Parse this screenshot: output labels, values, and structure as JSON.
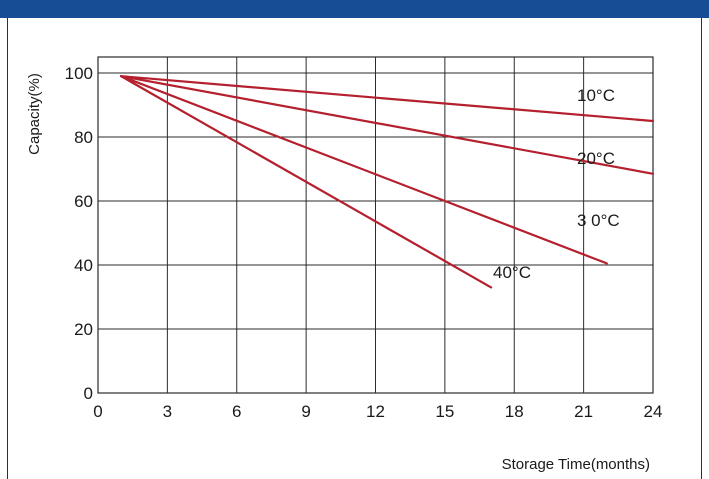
{
  "chart_data": {
    "type": "line",
    "xlabel": "Storage Time(months)",
    "ylabel": "Capacity(%)",
    "xlim": [
      0,
      24
    ],
    "ylim": [
      0,
      105
    ],
    "x_ticks": [
      0,
      3,
      6,
      9,
      12,
      15,
      18,
      21,
      24
    ],
    "y_ticks": [
      0,
      20,
      40,
      60,
      80,
      100
    ],
    "grid": true,
    "line_color": "#b5202e",
    "series": [
      {
        "name": "10°C",
        "points": [
          [
            1,
            99
          ],
          [
            24,
            85
          ]
        ]
      },
      {
        "name": "20°C",
        "points": [
          [
            1,
            99
          ],
          [
            24,
            68.5
          ]
        ]
      },
      {
        "name": "3 0°C",
        "points": [
          [
            1,
            99
          ],
          [
            22,
            40.5
          ]
        ]
      },
      {
        "name": "40°C",
        "points": [
          [
            1,
            99
          ],
          [
            17,
            33
          ]
        ]
      }
    ]
  }
}
